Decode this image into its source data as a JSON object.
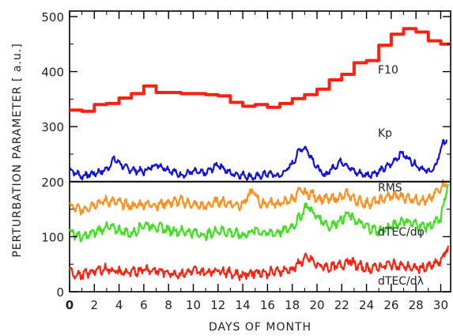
{
  "chart_data": {
    "type": "line",
    "xlabel": "DAYS OF MONTH",
    "ylabel": "PERTURBATION PARAMETER [ a.u.]",
    "xlim": [
      0,
      30.8
    ],
    "ylim": [
      0,
      510
    ],
    "x_ticks": [
      0,
      2,
      4,
      6,
      8,
      10,
      12,
      14,
      16,
      18,
      20,
      22,
      24,
      26,
      28,
      30
    ],
    "y_ticks": [
      0,
      100,
      200,
      300,
      400,
      500
    ],
    "grid": false,
    "reference_line": {
      "y": 200,
      "color": "#000000"
    },
    "series": [
      {
        "name": "F10",
        "color": "#ff2010",
        "style": "step",
        "x": [
          0,
          1,
          2,
          3,
          4,
          5,
          6,
          7,
          8,
          9,
          10,
          11,
          12,
          13,
          14,
          15,
          16,
          17,
          18,
          19,
          20,
          21,
          22,
          23,
          24,
          25,
          26,
          27,
          28,
          29,
          30
        ],
        "values": [
          330,
          328,
          340,
          342,
          352,
          360,
          374,
          362,
          362,
          360,
          360,
          358,
          356,
          344,
          337,
          340,
          335,
          342,
          351,
          358,
          368,
          385,
          395,
          416,
          420,
          448,
          468,
          478,
          472,
          456,
          450
        ]
      },
      {
        "name": "Kp",
        "color": "#1010e0",
        "style": "noisy",
        "x": [
          0,
          1,
          2,
          3,
          3.6,
          4.5,
          5,
          6,
          7,
          8,
          9,
          10,
          11,
          12,
          13,
          14,
          15,
          16,
          17,
          18,
          18.7,
          19.2,
          20,
          20.6,
          21,
          22,
          22.5,
          23,
          24,
          25,
          26,
          26.8,
          27.5,
          28,
          29,
          29.6,
          30,
          30.5
        ],
        "values": [
          222,
          210,
          215,
          222,
          242,
          225,
          222,
          218,
          232,
          222,
          212,
          218,
          215,
          232,
          215,
          212,
          208,
          215,
          210,
          232,
          262,
          258,
          226,
          210,
          220,
          238,
          228,
          218,
          212,
          218,
          232,
          252,
          240,
          230,
          218,
          226,
          262,
          278
        ]
      },
      {
        "name": "RMS",
        "color": "#ff9020",
        "style": "noisy",
        "x": [
          0,
          1,
          2,
          3,
          4,
          5,
          6,
          7,
          8,
          9,
          10,
          11,
          12,
          13,
          14,
          14.8,
          15.5,
          16,
          17,
          18,
          18.7,
          19,
          19.6,
          20,
          21,
          22,
          22.5,
          23,
          24,
          25,
          26,
          27,
          28,
          29,
          30,
          30.5
        ],
        "values": [
          155,
          148,
          160,
          165,
          162,
          155,
          160,
          158,
          162,
          165,
          158,
          155,
          165,
          160,
          158,
          185,
          158,
          162,
          160,
          168,
          185,
          178,
          178,
          170,
          168,
          172,
          178,
          168,
          160,
          165,
          175,
          172,
          168,
          165,
          190,
          200
        ]
      },
      {
        "name": "dTEC/dφ",
        "color": "#40e020",
        "style": "noisy",
        "x": [
          0,
          1,
          2,
          3,
          4,
          5,
          6,
          7,
          8,
          9,
          10,
          11,
          12,
          13,
          14,
          15,
          16,
          17,
          18,
          18.6,
          19.2,
          19.8,
          20.5,
          21,
          22,
          22.6,
          23,
          24,
          25,
          26,
          27,
          28,
          29,
          30,
          30.6
        ],
        "values": [
          110,
          98,
          108,
          118,
          112,
          105,
          122,
          118,
          112,
          110,
          108,
          102,
          112,
          108,
          102,
          112,
          106,
          108,
          118,
          135,
          158,
          140,
          128,
          118,
          132,
          142,
          130,
          118,
          110,
          118,
          130,
          122,
          118,
          132,
          198
        ]
      },
      {
        "name": "dTEC/dλ",
        "color": "#ff2010",
        "style": "noisy",
        "x": [
          0,
          1,
          2,
          3,
          4,
          5,
          6,
          7,
          8,
          9,
          10,
          11,
          12,
          13,
          14,
          15,
          16,
          17,
          18,
          18.7,
          19.3,
          20,
          21,
          22,
          22.6,
          23,
          24,
          25,
          26,
          27,
          28,
          29,
          30,
          30.6
        ],
        "values": [
          35,
          30,
          38,
          42,
          36,
          34,
          42,
          38,
          35,
          32,
          38,
          35,
          40,
          34,
          30,
          36,
          34,
          38,
          40,
          55,
          62,
          48,
          44,
          48,
          58,
          50,
          42,
          45,
          50,
          46,
          42,
          45,
          55,
          82
        ]
      }
    ]
  }
}
